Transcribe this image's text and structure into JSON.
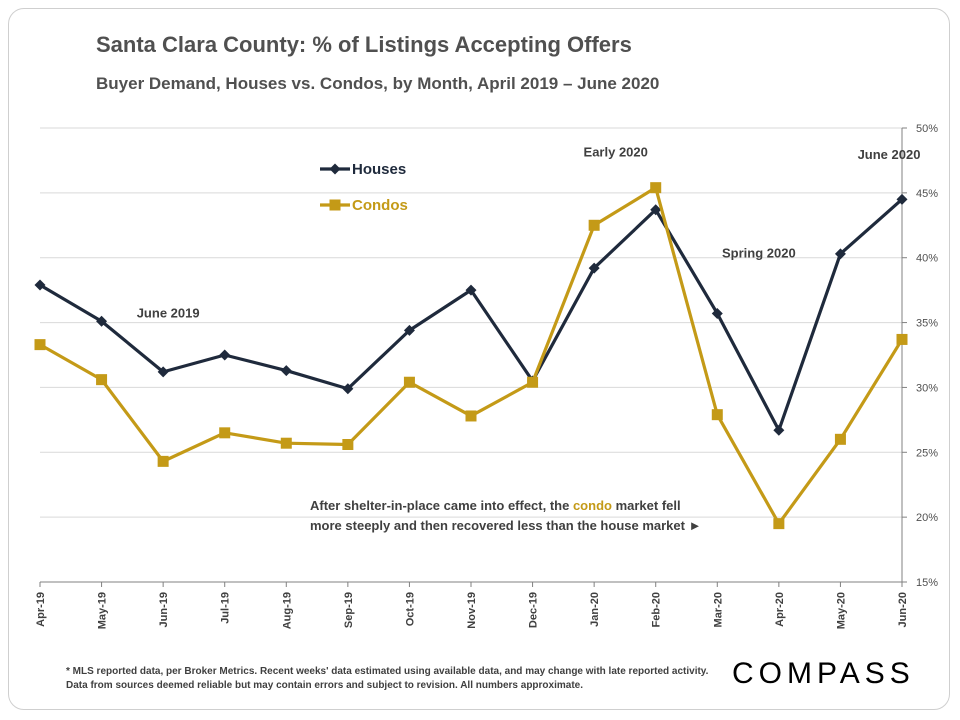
{
  "title": "Santa Clara County: % of Listings Accepting Offers",
  "subtitle": "Buyer Demand, Houses vs. Condos, by Month, April 2019 – June 2020",
  "footnote": "* MLS reported data, per Broker Metrics. Recent weeks' data estimated using available data, and may change with late reported activity. Data from sources deemed reliable but may contain errors and subject to revision. All numbers approximate.",
  "logo": "COMPASS",
  "colors": {
    "houses": "#1f2a3c",
    "condos": "#c49a17",
    "grid": "#d9d9d9",
    "text": "#404040"
  },
  "chart_data": {
    "type": "line",
    "title": "Santa Clara County: % of Listings Accepting Offers",
    "subtitle": "Buyer Demand, Houses vs. Condos, by Month, April 2019 – June 2020",
    "categories": [
      "Apr-19",
      "May-19",
      "Jun-19",
      "Jul-19",
      "Aug-19",
      "Sep-19",
      "Oct-19",
      "Nov-19",
      "Dec-19",
      "Jan-20",
      "Feb-20",
      "Mar-20",
      "Apr-20",
      "May-20",
      "Jun-20"
    ],
    "series": [
      {
        "name": "Houses",
        "color": "#1f2a3c",
        "marker": "diamond",
        "values": [
          37.9,
          35.1,
          31.2,
          32.5,
          31.3,
          29.9,
          34.4,
          37.5,
          30.5,
          39.2,
          43.7,
          35.7,
          26.7,
          40.3,
          44.5
        ]
      },
      {
        "name": "Condos",
        "color": "#c49a17",
        "marker": "square",
        "values": [
          33.3,
          30.6,
          24.3,
          26.5,
          25.7,
          25.6,
          30.4,
          27.8,
          30.4,
          42.5,
          45.4,
          27.9,
          19.5,
          26.0,
          33.7
        ]
      }
    ],
    "ylim": [
      15,
      50
    ],
    "yticks": [
      15,
      20,
      25,
      30,
      35,
      40,
      45,
      50
    ],
    "ytick_labels": [
      "15%",
      "20%",
      "25%",
      "30%",
      "35%",
      "40%",
      "45%",
      "50%"
    ],
    "y_axis_side": "right",
    "grid": true,
    "legend": "top-left",
    "annotations": [
      {
        "text": "June 2019",
        "x": "Jun-19",
        "y": 35.4
      },
      {
        "text": "Early 2020",
        "x": "Feb-20",
        "y": 47.8
      },
      {
        "text": "Spring 2020",
        "x": "Apr-20",
        "y": 40.0
      },
      {
        "text": "June 2020",
        "x": "Jun-20",
        "y": 47.6
      }
    ],
    "note": {
      "line1_before": "After shelter-in-place came into effect, the ",
      "line1_highlight": "condo",
      "line1_after": " market fell",
      "line2": "more steeply and then recovered less than the house market ►"
    }
  }
}
